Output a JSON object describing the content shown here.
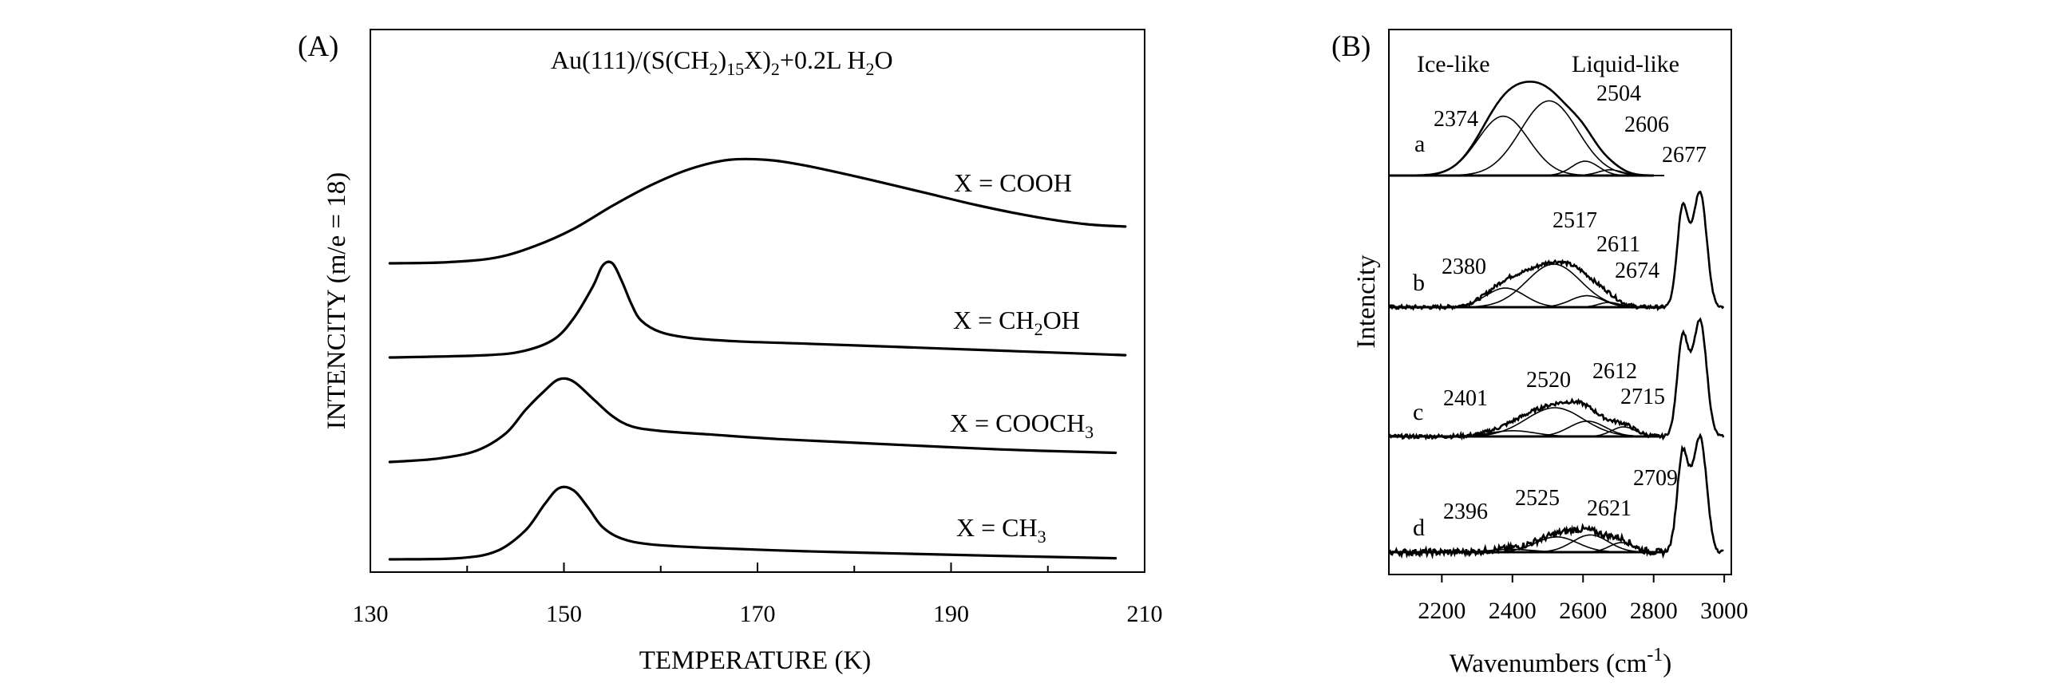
{
  "chart_data": [
    {
      "panel": "(A)",
      "type": "line",
      "title": "Au(111)/(S(CH₂)₁₅X)₂+0.2L H₂O",
      "title_parts": {
        "a": "Au(111)/(S(CH",
        "b": "2",
        "c": ")",
        "d": "15",
        "e": "X)",
        "f": "2",
        "g": "+0.2L H",
        "h": "2",
        "i": "O"
      },
      "xlabel": "TEMPERATURE (K)",
      "ylabel": "INTENCITY (m/e = 18)",
      "xlim": [
        130,
        210
      ],
      "x_ticks": [
        130,
        150,
        170,
        190,
        210
      ],
      "x_tick_labels": [
        "130",
        "150",
        "170",
        "190",
        "210"
      ],
      "y_units": "arbitrary, curves vertically offset",
      "series": [
        {
          "name": "X = COOH",
          "label_parts": {
            "a": "X = COOH"
          },
          "offset": 3.0,
          "points": [
            [
              132,
              0
            ],
            [
              138,
              0.01
            ],
            [
              143,
              0.05
            ],
            [
              147,
              0.15
            ],
            [
              151,
              0.3
            ],
            [
              155,
              0.5
            ],
            [
              159,
              0.68
            ],
            [
              163,
              0.82
            ],
            [
              167,
              0.9
            ],
            [
              171,
              0.9
            ],
            [
              175,
              0.85
            ],
            [
              181,
              0.74
            ],
            [
              187,
              0.62
            ],
            [
              193,
              0.5
            ],
            [
              199,
              0.4
            ],
            [
              204,
              0.34
            ],
            [
              208,
              0.32
            ]
          ]
        },
        {
          "name": "X = CH₂OH",
          "label_parts": {
            "a": "X = CH",
            "b": "2",
            "c": "OH"
          },
          "offset": 2.0,
          "points": [
            [
              132,
              0
            ],
            [
              142,
              0.02
            ],
            [
              146,
              0.06
            ],
            [
              149,
              0.16
            ],
            [
              151,
              0.34
            ],
            [
              153,
              0.62
            ],
            [
              154,
              0.8
            ],
            [
              155,
              0.82
            ],
            [
              156,
              0.66
            ],
            [
              157,
              0.46
            ],
            [
              158,
              0.32
            ],
            [
              160,
              0.22
            ],
            [
              163,
              0.17
            ],
            [
              168,
              0.14
            ],
            [
              175,
              0.12
            ],
            [
              185,
              0.09
            ],
            [
              195,
              0.06
            ],
            [
              208,
              0.02
            ]
          ]
        },
        {
          "name": "X = COOCH₃",
          "label_parts": {
            "a": "X = COOCH",
            "b": "3"
          },
          "offset": 1.0,
          "points": [
            [
              132,
              0
            ],
            [
              137,
              0.03
            ],
            [
              141,
              0.1
            ],
            [
              144,
              0.25
            ],
            [
              146,
              0.45
            ],
            [
              148,
              0.62
            ],
            [
              149.5,
              0.72
            ],
            [
              151,
              0.7
            ],
            [
              153,
              0.55
            ],
            [
              155,
              0.4
            ],
            [
              157,
              0.31
            ],
            [
              160,
              0.27
            ],
            [
              165,
              0.24
            ],
            [
              172,
              0.2
            ],
            [
              182,
              0.16
            ],
            [
              195,
              0.11
            ],
            [
              207,
              0.08
            ]
          ]
        },
        {
          "name": "X = CH₃",
          "label_parts": {
            "a": "X = CH",
            "b": "3"
          },
          "offset": 0.0,
          "points": [
            [
              132,
              0.0
            ],
            [
              139,
              0.01
            ],
            [
              143,
              0.07
            ],
            [
              146,
              0.25
            ],
            [
              148,
              0.48
            ],
            [
              149.5,
              0.62
            ],
            [
              151,
              0.6
            ],
            [
              152.5,
              0.45
            ],
            [
              154,
              0.28
            ],
            [
              156,
              0.18
            ],
            [
              159,
              0.13
            ],
            [
              165,
              0.1
            ],
            [
              175,
              0.07
            ],
            [
              185,
              0.05
            ],
            [
              195,
              0.03
            ],
            [
              207,
              0.01
            ]
          ]
        }
      ]
    },
    {
      "panel": "(B)",
      "type": "line",
      "xlabel_parts": {
        "a": "Wavenumbers (cm",
        "b": "-1",
        "c": ")"
      },
      "xlabel": "Wavenumbers (cm-1)",
      "ylabel": "Intencity",
      "xlim": [
        2050,
        3020
      ],
      "x_ticks": [
        2200,
        2400,
        2600,
        2800,
        3000
      ],
      "x_tick_labels": [
        "2200",
        "2400",
        "2600",
        "2800",
        "3000"
      ],
      "region_labels": {
        "ice": "Ice-like",
        "liquid": "Liquid-like"
      },
      "spectra": [
        {
          "name": "a",
          "x_range": [
            2050,
            2800
          ],
          "has_ch_band": false,
          "components": [
            {
              "center": 2374,
              "height": 0.62,
              "width": 85
            },
            {
              "center": 2504,
              "height": 0.78,
              "width": 95
            },
            {
              "center": 2606,
              "height": 0.15,
              "width": 45
            },
            {
              "center": 2677,
              "height": 0.06,
              "width": 40
            }
          ],
          "peak_labels": [
            "2374",
            "2504",
            "2606",
            "2677"
          ]
        },
        {
          "name": "b",
          "x_range": [
            2050,
            3000
          ],
          "has_ch_band": true,
          "components": [
            {
              "center": 2380,
              "height": 0.2,
              "width": 65
            },
            {
              "center": 2517,
              "height": 0.45,
              "width": 90
            },
            {
              "center": 2611,
              "height": 0.12,
              "width": 55
            },
            {
              "center": 2674,
              "height": 0.05,
              "width": 35
            }
          ],
          "peak_labels": [
            "2380",
            "2517",
            "2611",
            "2674"
          ]
        },
        {
          "name": "c",
          "x_range": [
            2050,
            3000
          ],
          "has_ch_band": true,
          "components": [
            {
              "center": 2401,
              "height": 0.06,
              "width": 75
            },
            {
              "center": 2520,
              "height": 0.3,
              "width": 95
            },
            {
              "center": 2612,
              "height": 0.16,
              "width": 60
            },
            {
              "center": 2715,
              "height": 0.1,
              "width": 40
            }
          ],
          "peak_labels": [
            "2401",
            "2520",
            "2612",
            "2715"
          ]
        },
        {
          "name": "d",
          "x_range": [
            2050,
            3000
          ],
          "has_ch_band": true,
          "components": [
            {
              "center": 2396,
              "height": 0.03,
              "width": 70
            },
            {
              "center": 2525,
              "height": 0.16,
              "width": 70
            },
            {
              "center": 2621,
              "height": 0.18,
              "width": 60
            },
            {
              "center": 2709,
              "height": 0.1,
              "width": 40
            }
          ],
          "peak_labels": [
            "2396",
            "2525",
            "2621",
            "2709"
          ]
        }
      ]
    }
  ]
}
